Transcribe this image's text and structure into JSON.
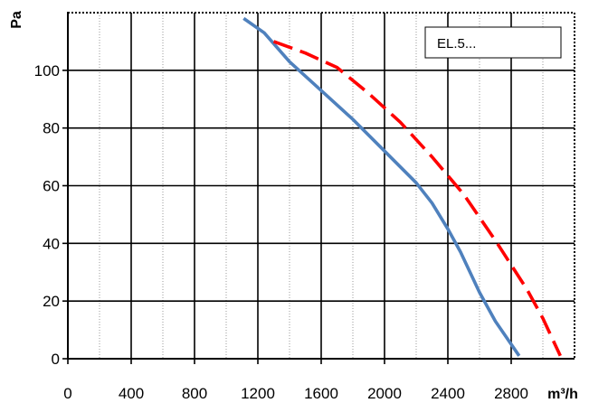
{
  "chart_data": {
    "type": "line",
    "title": "",
    "xlabel": "m³/h",
    "ylabel": "Pa",
    "xlim": [
      0,
      2800
    ],
    "ylim": [
      0,
      120
    ],
    "x_ticks": [
      0,
      400,
      800,
      1200,
      1600,
      2000,
      2400,
      2800
    ],
    "y_ticks": [
      0,
      20,
      40,
      60,
      80,
      100
    ],
    "grid": true,
    "legend_box": "EL.5...",
    "series": [
      {
        "style": "solid",
        "color": "#4F81BD",
        "points": [
          [
            1110,
            118
          ],
          [
            1240,
            113
          ],
          [
            1400,
            103
          ],
          [
            1600,
            93
          ],
          [
            1800,
            83
          ],
          [
            2000,
            72
          ],
          [
            2200,
            61
          ],
          [
            2300,
            54
          ],
          [
            2400,
            45
          ],
          [
            2480,
            37
          ],
          [
            2600,
            23
          ],
          [
            2700,
            13
          ],
          [
            2850,
            1
          ]
        ]
      },
      {
        "style": "dashed",
        "color": "#FF0000",
        "points": [
          [
            1300,
            110
          ],
          [
            1500,
            106
          ],
          [
            1700,
            101
          ],
          [
            1900,
            92
          ],
          [
            2100,
            82
          ],
          [
            2300,
            70
          ],
          [
            2500,
            57
          ],
          [
            2700,
            41
          ],
          [
            2900,
            24
          ],
          [
            3000,
            14
          ],
          [
            3110,
            1
          ]
        ]
      }
    ]
  }
}
